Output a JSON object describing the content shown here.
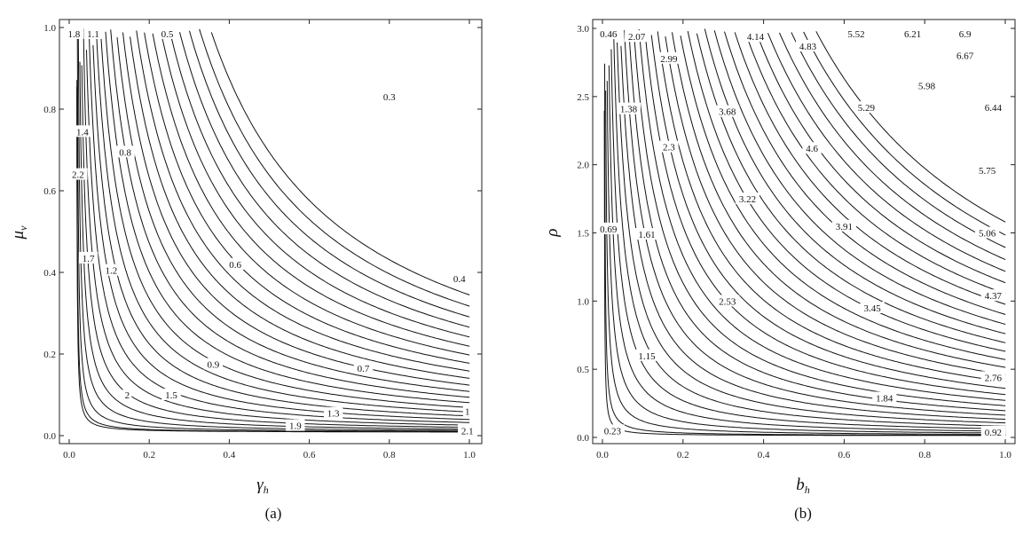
{
  "chart_data": [
    {
      "type": "contour",
      "caption": "(a)",
      "xlabel": "γ",
      "xlabel_sub": "h",
      "ylabel": "μ",
      "ylabel_sub": "v",
      "xlim": [
        0,
        1.0
      ],
      "ylim": [
        0,
        1.0
      ],
      "xticks": [
        "0.0",
        "0.2",
        "0.4",
        "0.6",
        "0.8",
        "1.0"
      ],
      "yticks": [
        "0.0",
        "0.2",
        "0.4",
        "0.6",
        "0.8",
        "1.0"
      ],
      "grid": false,
      "level_labels": [
        {
          "text": "1.8",
          "x": 0.012,
          "y": 0.985
        },
        {
          "text": "1.1",
          "x": 0.06,
          "y": 0.985
        },
        {
          "text": "0.5",
          "x": 0.245,
          "y": 0.985
        },
        {
          "text": "0.3",
          "x": 0.8,
          "y": 0.83
        },
        {
          "text": "1.4",
          "x": 0.033,
          "y": 0.745
        },
        {
          "text": "0.8",
          "x": 0.14,
          "y": 0.695
        },
        {
          "text": "2.2",
          "x": 0.022,
          "y": 0.64
        },
        {
          "text": "0.6",
          "x": 0.415,
          "y": 0.42
        },
        {
          "text": "0.4",
          "x": 0.975,
          "y": 0.385
        },
        {
          "text": "1.7",
          "x": 0.048,
          "y": 0.435
        },
        {
          "text": "1.2",
          "x": 0.105,
          "y": 0.405
        },
        {
          "text": "0.9",
          "x": 0.36,
          "y": 0.175
        },
        {
          "text": "0.7",
          "x": 0.735,
          "y": 0.165
        },
        {
          "text": "2",
          "x": 0.145,
          "y": 0.1
        },
        {
          "text": "1.5",
          "x": 0.255,
          "y": 0.1
        },
        {
          "text": "1.3",
          "x": 0.66,
          "y": 0.055
        },
        {
          "text": "1.9",
          "x": 0.565,
          "y": 0.025
        },
        {
          "text": "1",
          "x": 0.995,
          "y": 0.06
        },
        {
          "text": "2.1",
          "x": 0.995,
          "y": 0.012
        }
      ]
    },
    {
      "type": "contour",
      "caption": "(b)",
      "xlabel": "b",
      "xlabel_sub": "h",
      "ylabel": "ρ",
      "ylabel_sub": "",
      "xlim": [
        0,
        1.0
      ],
      "ylim": [
        0,
        3.0
      ],
      "xticks": [
        "0.0",
        "0.2",
        "0.4",
        "0.6",
        "0.8",
        "1.0"
      ],
      "yticks": [
        "0.0",
        "0.5",
        "1.0",
        "1.5",
        "2.0",
        "2.5",
        "3.0"
      ],
      "grid": false,
      "level_labels": [
        {
          "text": "0.46",
          "x": 0.015,
          "y": 2.96
        },
        {
          "text": "2.07",
          "x": 0.085,
          "y": 2.94
        },
        {
          "text": "4.14",
          "x": 0.38,
          "y": 2.94
        },
        {
          "text": "5.52",
          "x": 0.63,
          "y": 2.96
        },
        {
          "text": "6.21",
          "x": 0.77,
          "y": 2.96
        },
        {
          "text": "6.9",
          "x": 0.9,
          "y": 2.96
        },
        {
          "text": "4.83",
          "x": 0.51,
          "y": 2.87
        },
        {
          "text": "6.67",
          "x": 0.9,
          "y": 2.8
        },
        {
          "text": "2.99",
          "x": 0.165,
          "y": 2.78
        },
        {
          "text": "5.98",
          "x": 0.805,
          "y": 2.58
        },
        {
          "text": "1.38",
          "x": 0.065,
          "y": 2.41
        },
        {
          "text": "3.68",
          "x": 0.31,
          "y": 2.39
        },
        {
          "text": "5.29",
          "x": 0.655,
          "y": 2.42
        },
        {
          "text": "6.44",
          "x": 0.97,
          "y": 2.42
        },
        {
          "text": "2.3",
          "x": 0.165,
          "y": 2.13
        },
        {
          "text": "4.6",
          "x": 0.52,
          "y": 2.12
        },
        {
          "text": "5.75",
          "x": 0.955,
          "y": 1.96
        },
        {
          "text": "3.22",
          "x": 0.36,
          "y": 1.75
        },
        {
          "text": "3.91",
          "x": 0.6,
          "y": 1.55
        },
        {
          "text": "0.69",
          "x": 0.015,
          "y": 1.53
        },
        {
          "text": "1.61",
          "x": 0.11,
          "y": 1.49
        },
        {
          "text": "5.06",
          "x": 0.955,
          "y": 1.5
        },
        {
          "text": "4.37",
          "x": 0.97,
          "y": 1.04
        },
        {
          "text": "2.53",
          "x": 0.31,
          "y": 1.0
        },
        {
          "text": "3.45",
          "x": 0.67,
          "y": 0.95
        },
        {
          "text": "1.15",
          "x": 0.11,
          "y": 0.6
        },
        {
          "text": "2.76",
          "x": 0.97,
          "y": 0.44
        },
        {
          "text": "1.84",
          "x": 0.7,
          "y": 0.29
        },
        {
          "text": "0.23",
          "x": 0.025,
          "y": 0.05
        },
        {
          "text": "0.92",
          "x": 0.97,
          "y": 0.04
        }
      ]
    }
  ]
}
